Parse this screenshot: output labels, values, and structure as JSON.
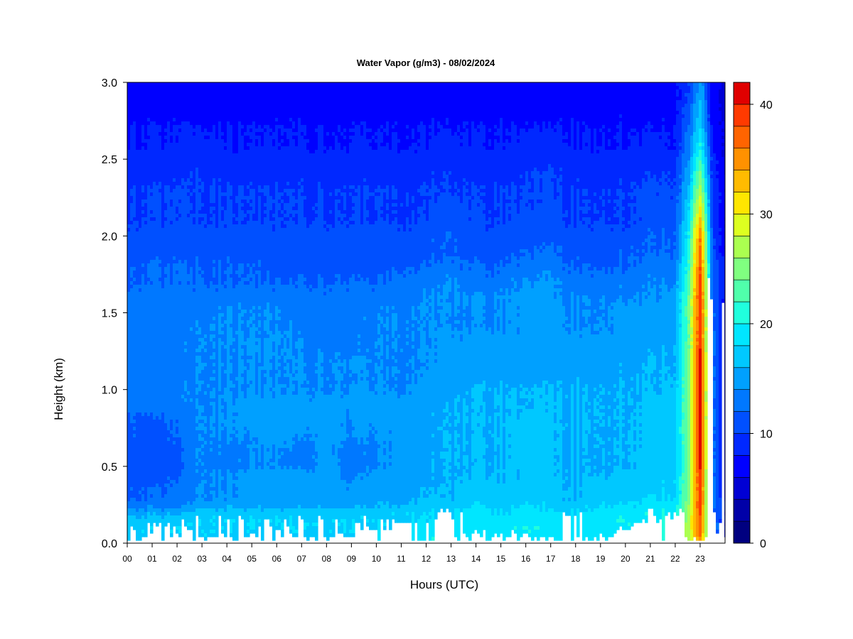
{
  "chart_data": {
    "type": "heatmap",
    "title": "Water Vapor (g/m3) - 08/02/2024",
    "xlabel": "Hours (UTC)",
    "ylabel": "Height (km)",
    "x_ticks": [
      "00",
      "01",
      "02",
      "03",
      "04",
      "05",
      "06",
      "07",
      "08",
      "09",
      "10",
      "11",
      "12",
      "13",
      "14",
      "15",
      "16",
      "17",
      "18",
      "19",
      "20",
      "21",
      "22",
      "23"
    ],
    "y_ticks": [
      "0.0",
      "0.5",
      "1.0",
      "1.5",
      "2.0",
      "2.5",
      "3.0"
    ],
    "xlim": [
      0,
      24
    ],
    "ylim": [
      0,
      3.0
    ],
    "colorbar": {
      "ticks": [
        "0",
        "10",
        "20",
        "30",
        "40"
      ],
      "range": [
        0,
        42
      ],
      "levels": [
        0,
        2,
        4,
        6,
        8,
        10,
        12,
        14,
        16,
        18,
        20,
        22,
        24,
        26,
        28,
        30,
        32,
        34,
        36,
        38,
        40,
        42
      ],
      "colors": [
        "#000080",
        "#0000a8",
        "#0000d4",
        "#0000ff",
        "#0028ff",
        "#0050ff",
        "#0078ff",
        "#00a0ff",
        "#00c8ff",
        "#00e6ff",
        "#20ffdd",
        "#50ffab",
        "#80ff80",
        "#abff50",
        "#ddff20",
        "#ffe600",
        "#ffbb00",
        "#ff9100",
        "#ff6400",
        "#ff3a00",
        "#e00000",
        "#a80000",
        "#800000"
      ]
    },
    "heights_km": [
      0.0,
      0.05,
      0.1,
      0.15,
      0.2,
      0.25,
      0.3,
      0.35,
      0.4,
      0.45,
      0.5,
      0.6,
      0.7,
      0.8,
      0.9,
      1.0,
      1.1,
      1.2,
      1.3,
      1.4,
      1.5,
      1.6,
      1.7,
      1.8,
      1.9,
      2.0,
      2.1,
      2.2,
      2.3,
      2.4,
      2.5,
      2.6,
      2.7,
      2.8,
      2.9,
      3.0
    ],
    "hours_utc": [
      0,
      1,
      2,
      3,
      4,
      5,
      6,
      7,
      8,
      9,
      10,
      11,
      12,
      13,
      14,
      15,
      16,
      17,
      18,
      19,
      20,
      21,
      22,
      22.5,
      23,
      23.5,
      24
    ],
    "values_g_m3": [
      [
        19,
        19,
        19,
        19,
        19,
        19,
        19,
        19,
        19,
        19,
        20,
        20,
        20,
        20,
        21,
        21,
        21,
        20,
        20,
        21,
        21,
        22,
        22,
        25,
        34,
        14,
        8
      ],
      [
        18,
        18,
        18,
        18,
        18,
        18,
        18,
        18,
        18,
        18,
        19,
        19,
        19,
        19,
        20,
        20,
        20,
        19,
        19,
        20,
        21,
        21,
        21,
        27,
        37,
        14,
        8
      ],
      [
        18,
        18,
        18,
        18,
        18,
        18,
        18,
        18,
        18,
        18,
        18,
        19,
        19,
        19,
        19,
        19,
        20,
        19,
        19,
        19,
        20,
        21,
        21,
        27,
        38,
        14,
        8
      ],
      [
        17,
        17,
        17,
        18,
        18,
        18,
        18,
        18,
        18,
        18,
        18,
        18,
        18,
        19,
        19,
        19,
        19,
        19,
        19,
        19,
        20,
        20,
        21,
        27,
        38,
        13,
        8
      ],
      [
        15,
        15,
        15,
        17,
        17,
        17,
        17,
        17,
        17,
        17,
        17,
        18,
        18,
        18,
        19,
        18,
        19,
        18,
        18,
        19,
        19,
        20,
        20,
        26,
        39,
        13,
        8
      ],
      [
        13,
        13,
        13,
        15,
        15,
        15,
        15,
        15,
        15,
        15,
        16,
        16,
        17,
        17,
        18,
        17,
        18,
        17,
        17,
        18,
        18,
        19,
        19,
        25,
        40,
        13,
        8
      ],
      [
        12,
        12,
        12,
        14,
        14,
        15,
        15,
        15,
        15,
        15,
        15,
        15,
        16,
        16,
        17,
        17,
        17,
        17,
        16,
        17,
        17,
        18,
        18,
        24,
        40,
        13,
        7
      ],
      [
        12,
        12,
        12,
        14,
        14,
        15,
        15,
        15,
        15,
        14,
        15,
        15,
        16,
        16,
        17,
        17,
        17,
        17,
        16,
        17,
        17,
        17,
        18,
        24,
        40,
        13,
        7
      ],
      [
        11,
        11,
        12,
        14,
        14,
        15,
        15,
        15,
        15,
        14,
        15,
        15,
        15,
        16,
        17,
        16,
        17,
        17,
        16,
        17,
        17,
        17,
        18,
        24,
        40,
        13,
        7
      ],
      [
        11,
        11,
        11,
        14,
        14,
        15,
        15,
        15,
        15,
        13,
        15,
        15,
        15,
        16,
        16,
        16,
        17,
        16,
        16,
        16,
        17,
        17,
        17,
        24,
        40,
        13,
        7
      ],
      [
        11,
        11,
        11,
        14,
        13,
        14,
        14,
        13,
        15,
        13,
        14,
        15,
        15,
        16,
        16,
        16,
        17,
        16,
        16,
        16,
        16,
        17,
        17,
        24,
        41,
        13,
        7
      ],
      [
        11,
        11,
        11,
        14,
        13,
        14,
        14,
        13,
        15,
        13,
        14,
        15,
        15,
        16,
        16,
        16,
        17,
        16,
        16,
        16,
        16,
        17,
        17,
        24,
        41,
        13,
        7
      ],
      [
        12,
        11,
        12,
        14,
        14,
        14,
        15,
        14,
        15,
        14,
        14,
        15,
        15,
        16,
        16,
        16,
        17,
        16,
        16,
        16,
        16,
        17,
        17,
        24,
        41,
        13,
        7
      ],
      [
        12,
        11,
        12,
        14,
        14,
        15,
        15,
        15,
        15,
        14,
        15,
        15,
        15,
        16,
        16,
        16,
        17,
        16,
        16,
        16,
        16,
        17,
        17,
        24,
        41,
        13,
        7
      ],
      [
        13,
        13,
        13,
        14,
        14,
        15,
        15,
        15,
        15,
        15,
        15,
        15,
        15,
        16,
        16,
        16,
        16,
        16,
        16,
        16,
        16,
        17,
        17,
        24,
        41,
        13,
        7
      ],
      [
        13,
        13,
        13,
        14,
        14,
        14,
        14,
        14,
        14,
        14,
        14,
        14,
        15,
        15,
        16,
        16,
        16,
        16,
        16,
        16,
        16,
        16,
        17,
        24,
        41,
        13,
        7
      ],
      [
        13,
        13,
        13,
        14,
        14,
        14,
        14,
        14,
        14,
        14,
        14,
        14,
        14,
        15,
        15,
        15,
        15,
        15,
        15,
        15,
        16,
        16,
        16,
        24,
        41,
        13,
        7
      ],
      [
        13,
        13,
        13,
        14,
        14,
        14,
        14,
        14,
        14,
        14,
        14,
        14,
        14,
        15,
        15,
        15,
        15,
        15,
        15,
        15,
        15,
        16,
        16,
        24,
        41,
        13,
        7
      ],
      [
        13,
        13,
        13,
        14,
        14,
        14,
        14,
        14,
        13,
        13,
        14,
        14,
        14,
        15,
        15,
        15,
        15,
        15,
        15,
        15,
        15,
        15,
        16,
        23,
        40,
        13,
        7
      ],
      [
        13,
        13,
        13,
        14,
        14,
        14,
        14,
        13,
        13,
        13,
        14,
        14,
        14,
        14,
        14,
        14,
        15,
        15,
        14,
        14,
        15,
        15,
        15,
        23,
        40,
        13,
        7
      ],
      [
        13,
        13,
        13,
        13,
        14,
        14,
        14,
        13,
        13,
        13,
        14,
        14,
        14,
        14,
        14,
        14,
        15,
        15,
        14,
        14,
        15,
        15,
        15,
        23,
        40,
        13,
        7
      ],
      [
        13,
        13,
        13,
        13,
        13,
        13,
        13,
        13,
        13,
        13,
        13,
        13,
        14,
        14,
        14,
        14,
        15,
        14,
        14,
        14,
        14,
        14,
        15,
        23,
        40,
        12,
        7
      ],
      [
        12,
        12,
        12,
        12,
        12,
        12,
        12,
        12,
        12,
        12,
        12,
        13,
        13,
        14,
        13,
        13,
        14,
        14,
        13,
        13,
        13,
        14,
        14,
        22,
        39,
        12,
        7
      ],
      [
        12,
        12,
        12,
        12,
        12,
        12,
        11,
        11,
        11,
        11,
        11,
        12,
        12,
        13,
        12,
        12,
        13,
        13,
        12,
        12,
        12,
        13,
        13,
        21,
        38,
        12,
        7
      ],
      [
        11,
        11,
        11,
        11,
        11,
        11,
        11,
        11,
        11,
        11,
        11,
        11,
        11,
        12,
        11,
        11,
        12,
        12,
        11,
        11,
        12,
        12,
        12,
        20,
        37,
        11,
        6
      ],
      [
        11,
        11,
        11,
        11,
        11,
        11,
        11,
        11,
        11,
        11,
        11,
        11,
        11,
        12,
        11,
        11,
        11,
        11,
        11,
        11,
        11,
        12,
        12,
        19,
        36,
        11,
        6
      ],
      [
        10,
        10,
        10,
        10,
        10,
        10,
        10,
        10,
        10,
        10,
        10,
        10,
        10,
        11,
        10,
        10,
        11,
        11,
        10,
        10,
        10,
        11,
        11,
        18,
        33,
        10,
        6
      ],
      [
        10,
        10,
        10,
        10,
        10,
        10,
        10,
        10,
        10,
        10,
        10,
        10,
        10,
        11,
        10,
        10,
        10,
        10,
        10,
        10,
        10,
        11,
        11,
        17,
        30,
        10,
        6
      ],
      [
        10,
        10,
        10,
        10,
        10,
        10,
        10,
        10,
        10,
        10,
        10,
        10,
        10,
        10,
        10,
        10,
        10,
        10,
        10,
        10,
        10,
        11,
        10,
        16,
        27,
        10,
        6
      ],
      [
        9,
        9,
        9,
        10,
        9,
        9,
        9,
        9,
        9,
        9,
        9,
        9,
        9,
        10,
        9,
        9,
        10,
        10,
        9,
        9,
        9,
        10,
        10,
        15,
        25,
        9,
        6
      ],
      [
        9,
        9,
        9,
        9,
        9,
        9,
        9,
        9,
        9,
        9,
        9,
        9,
        9,
        9,
        9,
        9,
        9,
        9,
        9,
        9,
        9,
        9,
        9,
        14,
        22,
        9,
        5
      ],
      [
        8,
        8,
        8,
        9,
        8,
        8,
        8,
        8,
        8,
        8,
        8,
        8,
        8,
        9,
        8,
        8,
        9,
        9,
        8,
        8,
        8,
        9,
        8,
        13,
        20,
        8,
        5
      ],
      [
        8,
        8,
        8,
        8,
        8,
        8,
        8,
        8,
        8,
        8,
        8,
        8,
        8,
        8,
        8,
        8,
        8,
        8,
        8,
        8,
        8,
        8,
        8,
        12,
        18,
        8,
        5
      ],
      [
        7,
        7,
        7,
        7,
        7,
        7,
        7,
        7,
        7,
        7,
        7,
        7,
        7,
        7,
        7,
        7,
        7,
        7,
        7,
        7,
        7,
        7,
        7,
        11,
        17,
        7,
        5
      ],
      [
        7,
        7,
        7,
        7,
        7,
        7,
        7,
        7,
        7,
        7,
        7,
        7,
        7,
        7,
        7,
        7,
        7,
        7,
        7,
        7,
        7,
        7,
        7,
        10,
        16,
        7,
        5
      ],
      [
        7,
        7,
        7,
        7,
        7,
        7,
        7,
        7,
        7,
        7,
        7,
        7,
        7,
        7,
        7,
        7,
        7,
        7,
        7,
        7,
        7,
        7,
        7,
        10,
        15,
        7,
        5
      ]
    ]
  }
}
